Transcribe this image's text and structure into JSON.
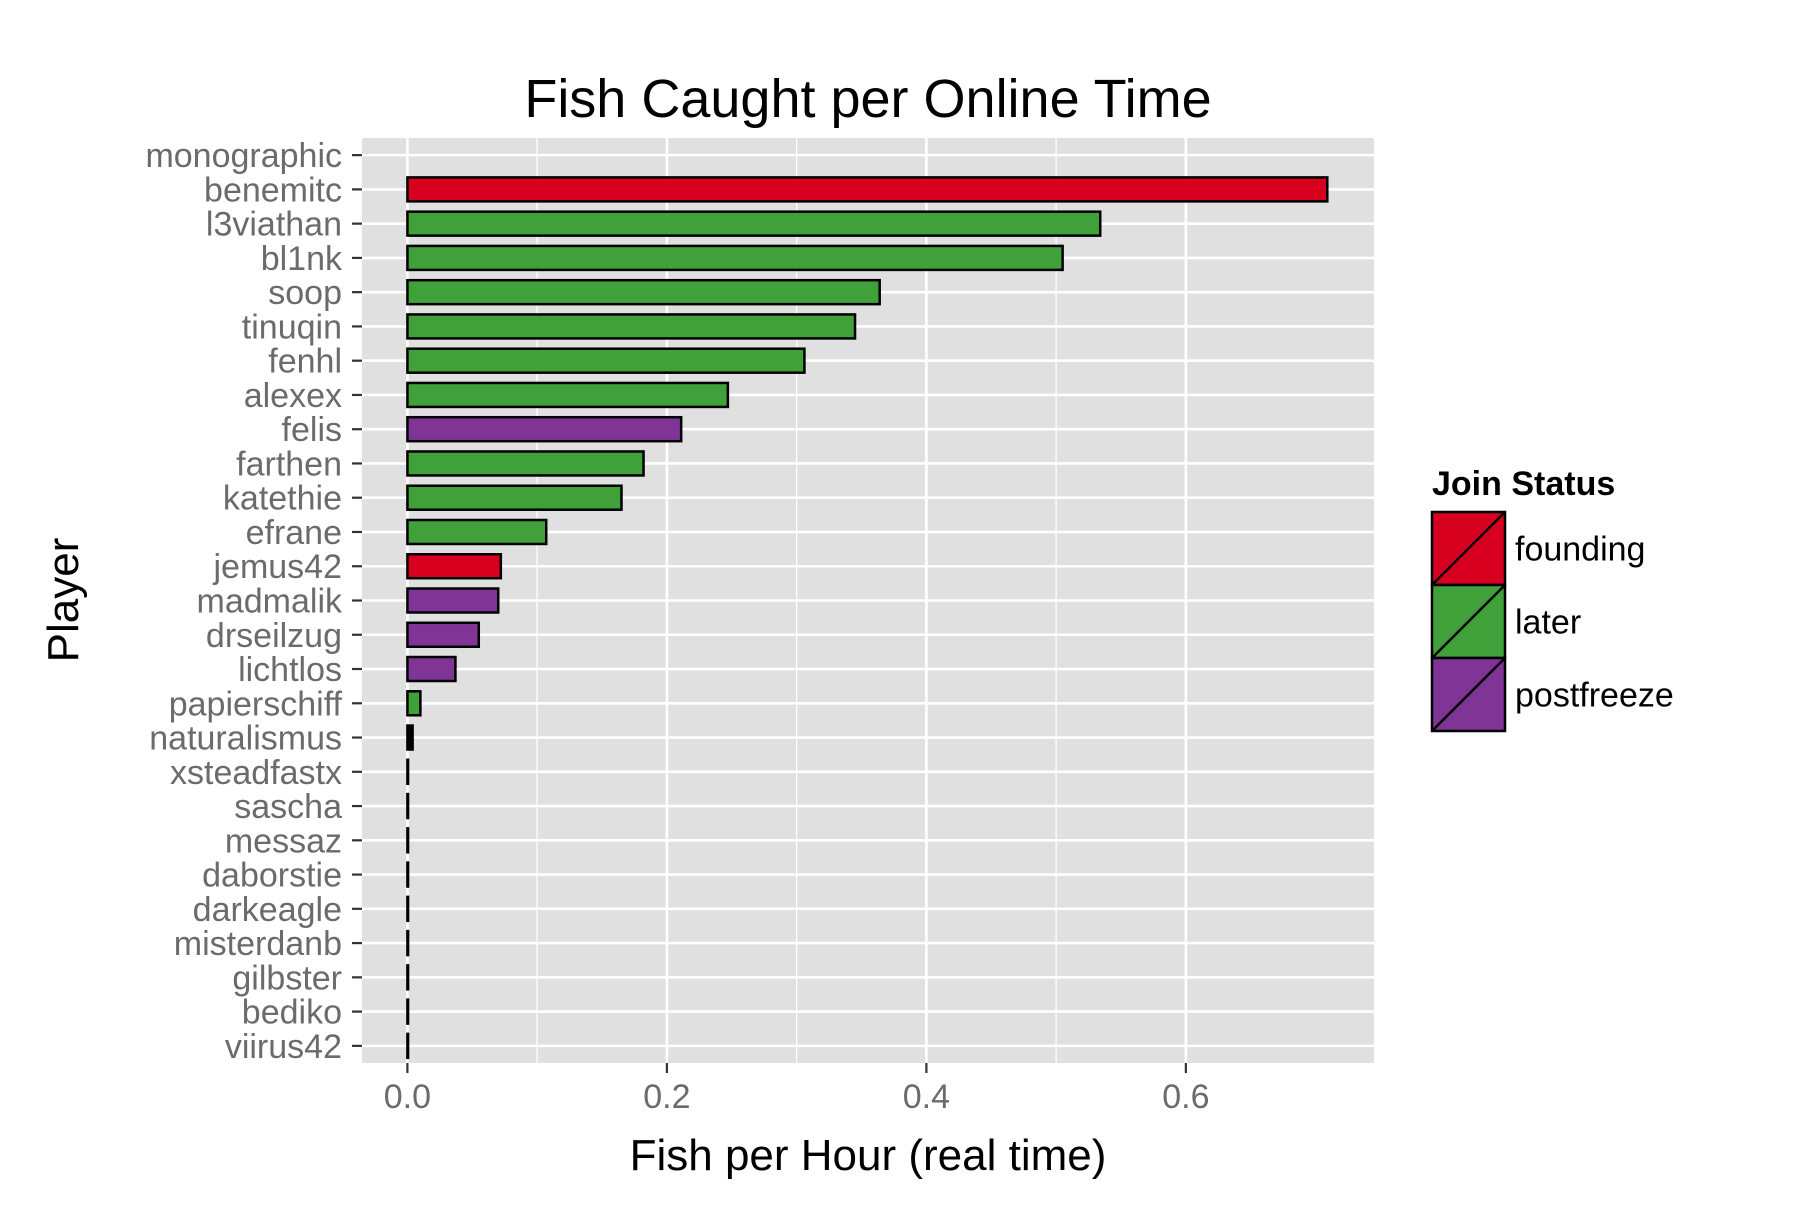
{
  "chart_data": {
    "type": "bar",
    "orientation": "horizontal",
    "title": "Fish Caught per Online Time",
    "xlabel": "Fish per Hour (real time)",
    "ylabel": "Player",
    "xlim": [
      -0.035,
      0.745
    ],
    "xticks": [
      0.0,
      0.2,
      0.4,
      0.6
    ],
    "xtick_labels": [
      "0.0",
      "0.2",
      "0.4",
      "0.6"
    ],
    "grid": true,
    "legend_position": "right",
    "legend": {
      "title": "Join Status",
      "entries": [
        {
          "label": "founding",
          "color": "#d7001e"
        },
        {
          "label": "later",
          "color": "#40a03a"
        },
        {
          "label": "postfreeze",
          "color": "#7f3496"
        }
      ]
    },
    "categories": [
      "monographic",
      "benemitc",
      "l3viathan",
      "bl1nk",
      "soop",
      "tinuqin",
      "fenhl",
      "alexex",
      "felis",
      "farthen",
      "katethie",
      "efrane",
      "jemus42",
      "madmalik",
      "drseilzug",
      "lichtlos",
      "papierschiff",
      "naturalismus",
      "xsteadfastx",
      "sascha",
      "messaz",
      "daborstie",
      "darkeagle",
      "misterdanb",
      "gilbster",
      "bediko",
      "viirus42"
    ],
    "values": [
      0.0,
      0.709,
      0.534,
      0.505,
      0.364,
      0.345,
      0.306,
      0.247,
      0.211,
      0.182,
      0.165,
      0.107,
      0.072,
      0.07,
      0.055,
      0.037,
      0.01,
      0.004,
      0.0005,
      0.0005,
      0.0005,
      0.0005,
      0.0005,
      0.0005,
      0.0005,
      0.0005,
      0.0005
    ],
    "groups": [
      "",
      "founding",
      "later",
      "later",
      "later",
      "later",
      "later",
      "later",
      "postfreeze",
      "later",
      "later",
      "later",
      "founding",
      "postfreeze",
      "postfreeze",
      "postfreeze",
      "later",
      "",
      "",
      "",
      "",
      "",
      "",
      "",
      "",
      "",
      ""
    ]
  },
  "colors": {
    "panel_bg": "#e0e0e0",
    "grid": "#ffffff",
    "tick_text": "#6b6b6b",
    "bar_outline": "#000000",
    "founding": "#d7001e",
    "later": "#40a03a",
    "postfreeze": "#7f3496"
  }
}
